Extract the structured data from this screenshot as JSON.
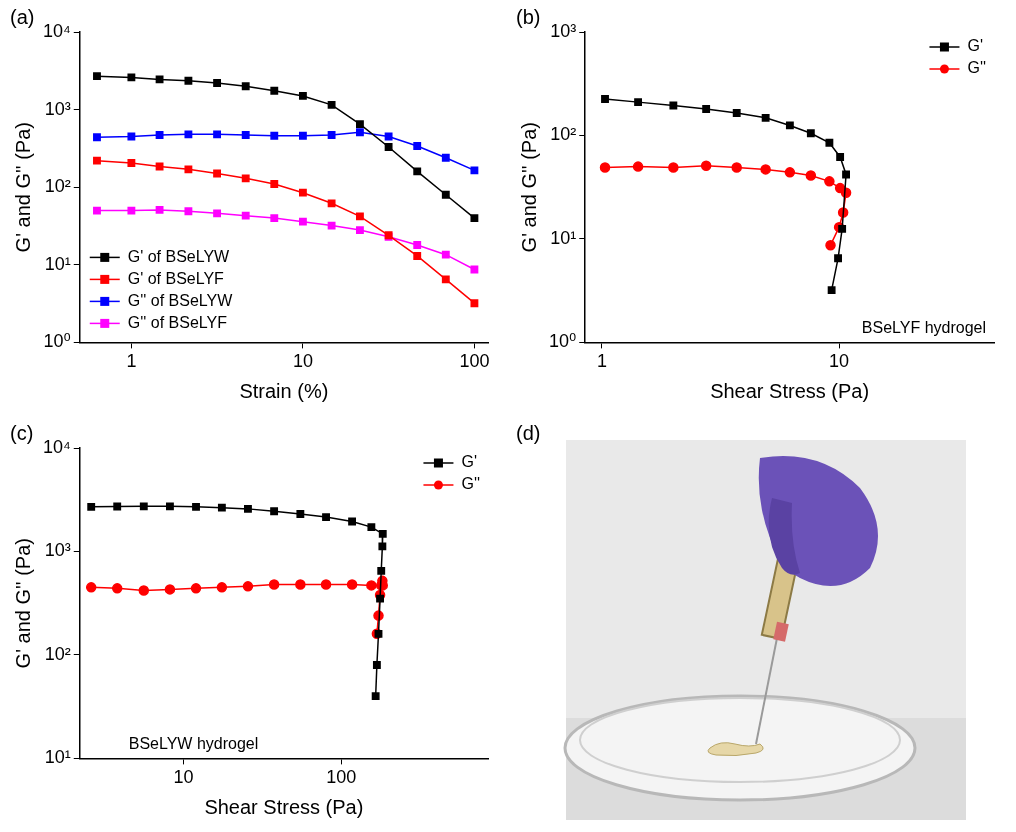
{
  "chart_data": [
    {
      "panel": "(a)",
      "type": "line",
      "x_label": "Strain (%)",
      "y_label": "G' and G'' (Pa)",
      "log": true,
      "grid": false,
      "legend": "lower left",
      "xlim": [
        0.5,
        120
      ],
      "xticks": [
        1,
        10,
        100
      ],
      "ylim": [
        1,
        10000
      ],
      "yticks": [
        {
          "value": 1,
          "label": "10⁰"
        },
        {
          "value": 10,
          "label": "10¹"
        },
        {
          "value": 100,
          "label": "10²"
        },
        {
          "value": 1000,
          "label": "10³"
        },
        {
          "value": 10000,
          "label": "10⁴"
        }
      ],
      "x": [
        0.63,
        1.0,
        1.46,
        2.15,
        3.16,
        4.64,
        6.81,
        10,
        14.7,
        21.5,
        31.6,
        46.4,
        68.1,
        100
      ],
      "series": [
        {
          "name": "G' of BSeLYW",
          "color": "#000000",
          "marker": "square",
          "values": [
            2700,
            2600,
            2450,
            2350,
            2200,
            2000,
            1750,
            1500,
            1150,
            650,
            330,
            160,
            80,
            40
          ]
        },
        {
          "name": "G' of BSeLYF",
          "color": "#ff0000",
          "marker": "square",
          "values": [
            220,
            205,
            185,
            170,
            150,
            130,
            110,
            85,
            62,
            42,
            24,
            13,
            6.5,
            3.2
          ]
        },
        {
          "name": "G'' of BSeLYW",
          "color": "#0000ff",
          "marker": "square",
          "values": [
            440,
            450,
            470,
            480,
            480,
            470,
            460,
            460,
            470,
            510,
            450,
            340,
            240,
            165
          ]
        },
        {
          "name": "G'' of BSeLYF",
          "color": "#ff00ff",
          "marker": "square",
          "values": [
            50,
            50,
            51,
            49,
            46,
            43,
            40,
            36,
            32,
            28,
            23,
            18,
            13.5,
            8.7
          ]
        }
      ]
    },
    {
      "panel": "(b)",
      "type": "line",
      "x_label": "Shear Stress (Pa)",
      "y_label": "G' and G'' (Pa)",
      "annotations": [
        "BSeLYF hydrogel"
      ],
      "log": true,
      "grid": false,
      "legend": "upper right",
      "xlim": [
        0.85,
        45
      ],
      "xticks": [
        1,
        10
      ],
      "ylim": [
        1,
        1000
      ],
      "yticks": [
        {
          "value": 1,
          "label": "10⁰"
        },
        {
          "value": 10,
          "label": "10¹"
        },
        {
          "value": 100,
          "label": "10²"
        },
        {
          "value": 1000,
          "label": "10³"
        }
      ],
      "series": [
        {
          "name": "G'",
          "color": "#000000",
          "marker": "square",
          "x": [
            1.03,
            1.42,
            2.0,
            2.75,
            3.7,
            4.9,
            6.2,
            7.6,
            9.1,
            10.1,
            10.7,
            10.3,
            9.9,
            9.3
          ],
          "values": [
            225,
            210,
            195,
            180,
            165,
            148,
            125,
            105,
            85,
            62,
            42,
            12.5,
            6.5,
            3.2
          ]
        },
        {
          "name": "G''",
          "color": "#ff0000",
          "marker": "circle",
          "x": [
            1.03,
            1.42,
            2.0,
            2.75,
            3.7,
            4.9,
            6.2,
            7.6,
            9.1,
            10.1,
            10.7,
            10.4,
            10.0,
            9.2
          ],
          "values": [
            49,
            50,
            49,
            51,
            49,
            47,
            44,
            41,
            36,
            31,
            28,
            18,
            13,
            8.7
          ]
        }
      ]
    },
    {
      "panel": "(c)",
      "type": "line",
      "x_label": "Shear Stress (Pa)",
      "y_label": "G' and G'' (Pa)",
      "annotations": [
        "BSeLYW hydrogel"
      ],
      "log": true,
      "grid": false,
      "legend": "upper right",
      "xlim": [
        2.2,
        850
      ],
      "xticks": [
        10,
        100
      ],
      "ylim": [
        10,
        10000
      ],
      "yticks": [
        {
          "value": 10,
          "label": "10¹"
        },
        {
          "value": 100,
          "label": "10²"
        },
        {
          "value": 1000,
          "label": "10³"
        },
        {
          "value": 10000,
          "label": "10⁴"
        }
      ],
      "series": [
        {
          "name": "G'",
          "color": "#000000",
          "marker": "square",
          "x": [
            2.6,
            3.8,
            5.6,
            8.2,
            12,
            17.5,
            25.6,
            37.5,
            55,
            80,
            117,
            155,
            183,
            182,
            179,
            176,
            172,
            168,
            165
          ],
          "values": [
            2700,
            2720,
            2730,
            2730,
            2700,
            2650,
            2580,
            2450,
            2300,
            2150,
            1950,
            1720,
            1480,
            1120,
            650,
            350,
            160,
            80,
            40
          ]
        },
        {
          "name": "G''",
          "color": "#ff0000",
          "marker": "circle",
          "x": [
            2.6,
            3.8,
            5.6,
            8.2,
            12,
            17.5,
            25.6,
            37.5,
            55,
            80,
            117,
            155,
            183,
            182,
            179,
            176,
            172,
            168
          ],
          "values": [
            450,
            440,
            420,
            430,
            440,
            450,
            460,
            480,
            480,
            480,
            480,
            470,
            470,
            520,
            470,
            380,
            240,
            160
          ]
        }
      ]
    }
  ],
  "photo": {
    "panel": "(d)"
  }
}
